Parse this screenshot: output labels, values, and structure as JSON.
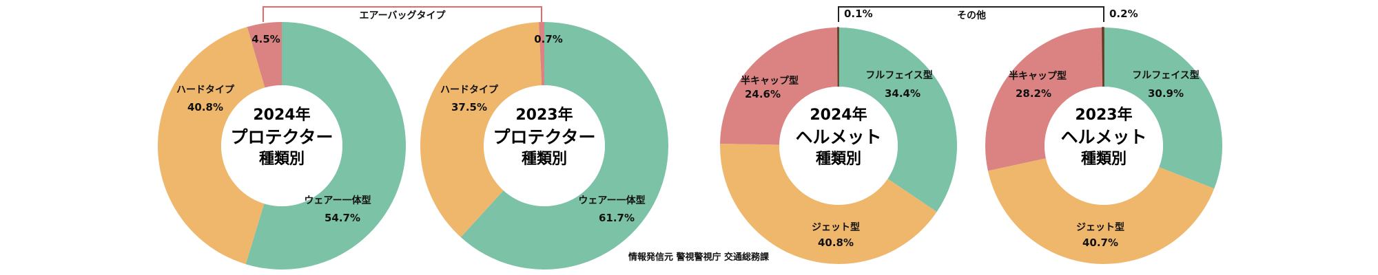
{
  "source": "情報発信元 警視警視庁 交通総務課",
  "colors": {
    "green": "#7cc2a7",
    "orange": "#efb76c",
    "pink": "#db8383",
    "brown": "#7f5436",
    "white": "#ffffff",
    "airbag_bracket": "#e36a6a",
    "other_bracket": "#222222"
  },
  "brackets": {
    "airbag": "エアーバッグタイプ",
    "other": "その他"
  },
  "chart_data": [
    {
      "type": "pie",
      "year": "2024年",
      "title_lines": [
        "プロテクター",
        "種類別"
      ],
      "slices": [
        {
          "name": "ウェアー一体型",
          "value": 54.7,
          "label": "54.7%",
          "color": "#7cc2a7"
        },
        {
          "name": "ハードタイプ",
          "value": 40.8,
          "label": "40.8%",
          "color": "#efb76c"
        },
        {
          "name": "エアーバッグタイプ",
          "value": 4.5,
          "label": "4.5%",
          "color": "#db8383"
        }
      ]
    },
    {
      "type": "pie",
      "year": "2023年",
      "title_lines": [
        "プロテクター",
        "種類別"
      ],
      "slices": [
        {
          "name": "ウェアー一体型",
          "value": 61.7,
          "label": "61.7%",
          "color": "#7cc2a7"
        },
        {
          "name": "ハードタイプ",
          "value": 37.5,
          "label": "37.5%",
          "color": "#efb76c"
        },
        {
          "name": "エアーバッグタイプ",
          "value": 0.7,
          "label": "0.7%",
          "color": "#db8383"
        }
      ]
    },
    {
      "type": "pie",
      "year": "2024年",
      "title_lines": [
        "ヘルメット",
        "種類別"
      ],
      "slices": [
        {
          "name": "フルフェイス型",
          "value": 34.4,
          "label": "34.4%",
          "color": "#7cc2a7"
        },
        {
          "name": "ジェット型",
          "value": 40.8,
          "label": "40.8%",
          "color": "#efb76c"
        },
        {
          "name": "半キャップ型",
          "value": 24.6,
          "label": "24.6%",
          "color": "#db8383"
        },
        {
          "name": "その他",
          "value": 0.1,
          "label": "0.1%",
          "color": "#7f5436"
        }
      ]
    },
    {
      "type": "pie",
      "year": "2023年",
      "title_lines": [
        "ヘルメット",
        "種類別"
      ],
      "slices": [
        {
          "name": "フルフェイス型",
          "value": 30.9,
          "label": "30.9%",
          "color": "#7cc2a7"
        },
        {
          "name": "ジェット型",
          "value": 40.7,
          "label": "40.7%",
          "color": "#efb76c"
        },
        {
          "name": "半キャップ型",
          "value": 28.2,
          "label": "28.2%",
          "color": "#db8383"
        },
        {
          "name": "その他",
          "value": 0.2,
          "label": "0.2%",
          "color": "#7f5436"
        }
      ]
    }
  ]
}
